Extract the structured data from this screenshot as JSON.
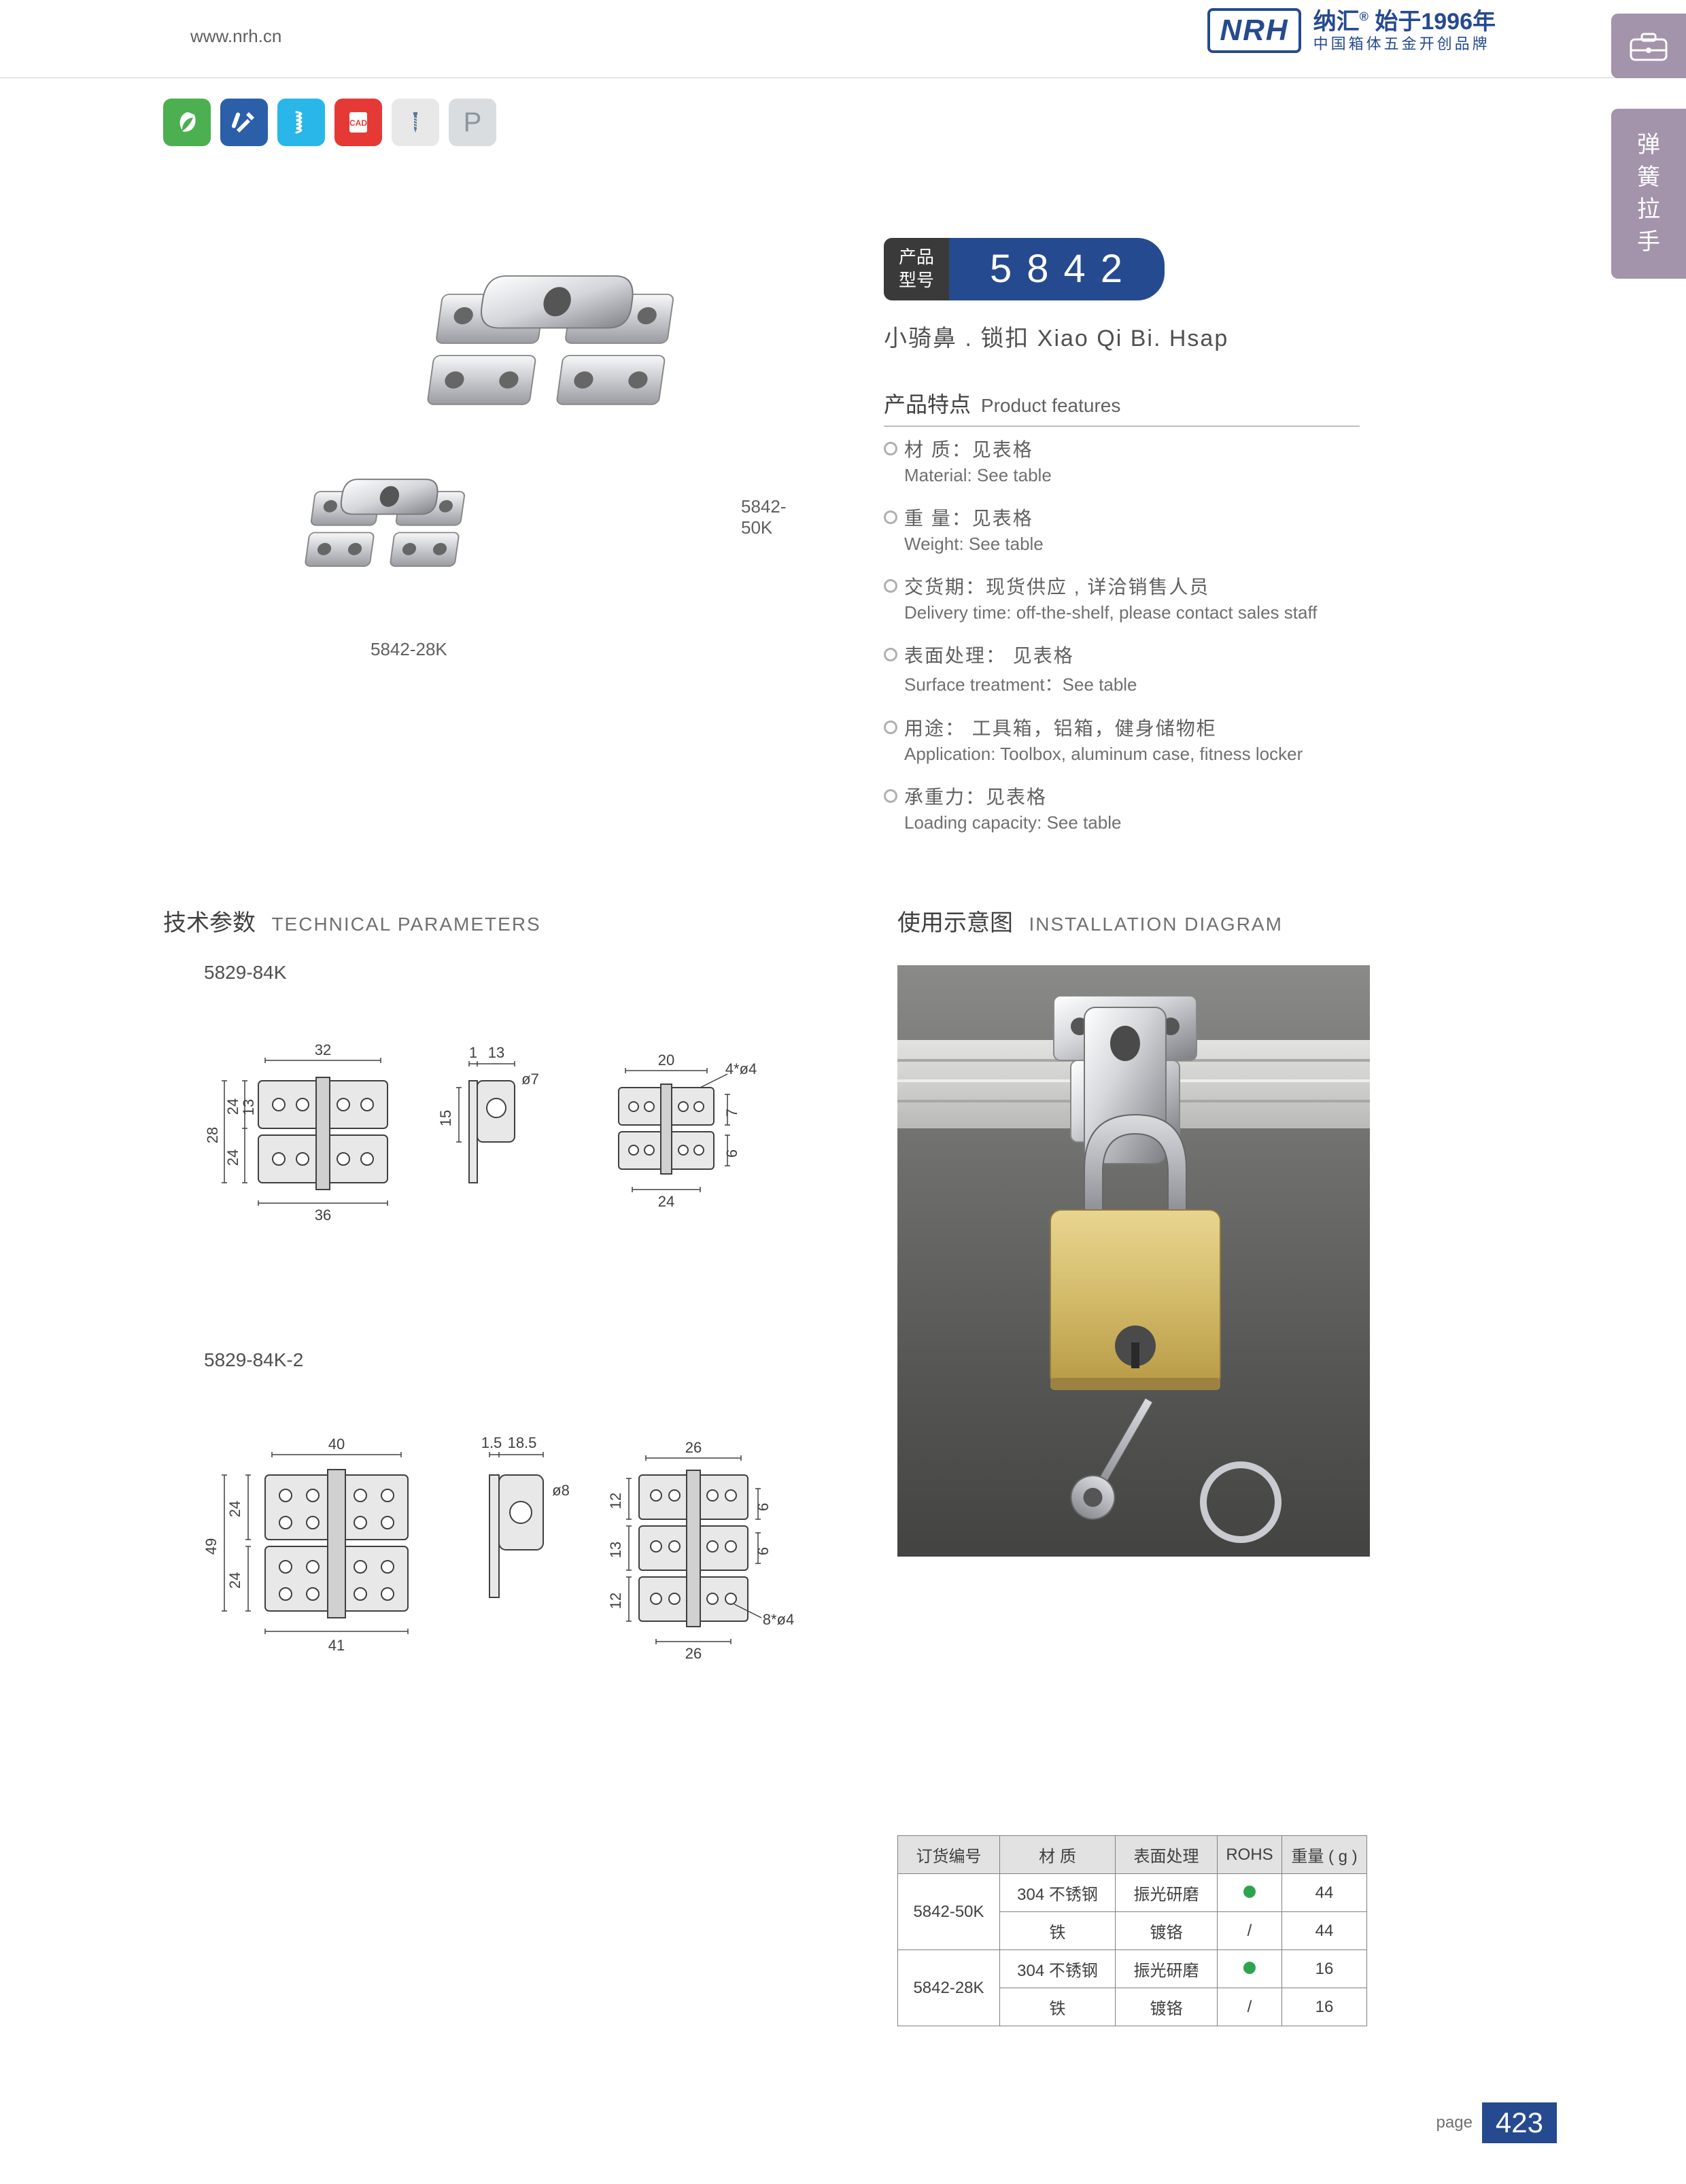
{
  "header": {
    "url": "www.nrh.cn",
    "logo_abbr": "NRH",
    "logo_line1_a": "纳汇",
    "logo_line1_sup": "®",
    "logo_line1_b": "始于1996年",
    "logo_line2": "中国箱体五金开创品牌"
  },
  "sidebar": {
    "tab_text": "弹簧拉手"
  },
  "icons": [
    "eco",
    "tools",
    "spring",
    "cad",
    "screw",
    "P"
  ],
  "product": {
    "caption_large": "5842-50K",
    "caption_small": "5842-28K"
  },
  "model": {
    "left_l1": "产品",
    "left_l2": "型号",
    "number": "5842"
  },
  "subtitle": "小骑鼻 . 锁扣   Xiao Qi Bi. Hsap",
  "feat_title_cn": "产品特点",
  "feat_title_en": "Product features",
  "features": [
    {
      "cn": "材 质：见表格",
      "en": "Material: See table"
    },
    {
      "cn": "重 量：见表格",
      "en": "Weight: See table"
    },
    {
      "cn": "交货期：现货供应 , 详洽销售人员",
      "en": "Delivery time: off-the-shelf, please contact sales staff"
    },
    {
      "cn": "表面处理： 见表格",
      "en": "Surface treatment：See table"
    },
    {
      "cn": "用途： 工具箱，铝箱，健身储物柜",
      "en": "Application: Toolbox, aluminum case, fitness locker"
    },
    {
      "cn": "承重力：见表格",
      "en": "Loading capacity: See table"
    }
  ],
  "tech_title_cn": "技术参数",
  "tech_title_en": "TECHNICAL PARAMETERS",
  "install_title_cn": "使用示意图",
  "install_title_en": "INSTALLATION DIAGRAM",
  "draw1": {
    "label": "5829-84K",
    "dims": {
      "w_top": "32",
      "w_bot": "36",
      "h_left": "28",
      "h_13": "13",
      "h_24a": "24",
      "h_24b": "24",
      "side_1": "1",
      "side_13": "13",
      "side_o7": "ø7",
      "side_15": "15",
      "r_top": "20",
      "r_4o4": "4*ø4",
      "r_7": "7",
      "r_6": "6",
      "r_bot": "24"
    }
  },
  "draw2": {
    "label": "5829-84K-2",
    "dims": {
      "w_top": "40",
      "w_bot": "41",
      "h_left": "49",
      "h_24a": "24",
      "h_24b": "24",
      "side_15": "1.5",
      "side_185": "18.5",
      "side_o8": "ø8",
      "r_top": "26",
      "r_12a": "12",
      "r_13": "13",
      "r_12b": "12",
      "r_6a": "6",
      "r_6b": "6",
      "r_8o4": "8*ø4",
      "r_bot": "26"
    }
  },
  "table": {
    "headers": [
      "订货编号",
      "材 质",
      "表面处理",
      "ROHS",
      "重量 ( g )"
    ],
    "rows": [
      {
        "code": "5842-50K",
        "mat": "304 不锈钢",
        "surf": "振光研磨",
        "rohs": "dot",
        "wt": "44"
      },
      {
        "code": "",
        "mat": "铁",
        "surf": "镀铬",
        "rohs": "/",
        "wt": "44"
      },
      {
        "code": "5842-28K",
        "mat": "304 不锈钢",
        "surf": "振光研磨",
        "rohs": "dot",
        "wt": "16"
      },
      {
        "code": "",
        "mat": "铁",
        "surf": "镀铬",
        "rohs": "/",
        "wt": "16"
      }
    ]
  },
  "footer": {
    "label": "page",
    "num": "423"
  },
  "colors": {
    "brand_blue": "#254a8f",
    "accent_purple": "#a393ab",
    "icon_green": "#4caf50",
    "icon_red": "#e53935",
    "icon_cyan": "#29b6e8",
    "rohs_green": "#2ea44f",
    "text_grey": "#606060",
    "line_grey": "#808080"
  }
}
